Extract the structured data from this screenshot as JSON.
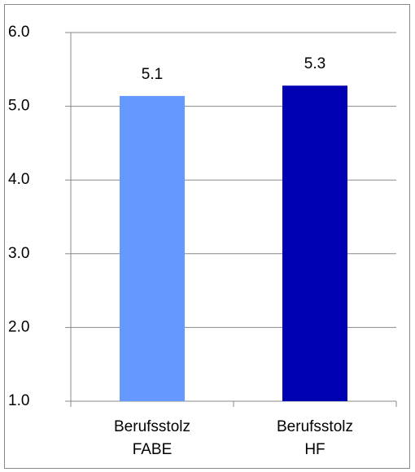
{
  "chart_data": {
    "type": "bar",
    "categories": [
      "Berufsstolz\nFABE",
      "Berufsstolz\nHF"
    ],
    "values": [
      5.14,
      5.28
    ],
    "value_labels": [
      "5.1",
      "5.3"
    ],
    "colors": [
      "#6699ff",
      "#0000b3"
    ],
    "ylim": [
      1,
      6
    ],
    "yticks": [
      {
        "value": 1,
        "label": "1.0"
      },
      {
        "value": 2,
        "label": "2.0"
      },
      {
        "value": 3,
        "label": "3.0"
      },
      {
        "value": 4,
        "label": "4.0"
      },
      {
        "value": 5,
        "label": "5.0"
      },
      {
        "value": 6,
        "label": "6.0"
      }
    ],
    "grid": true
  }
}
